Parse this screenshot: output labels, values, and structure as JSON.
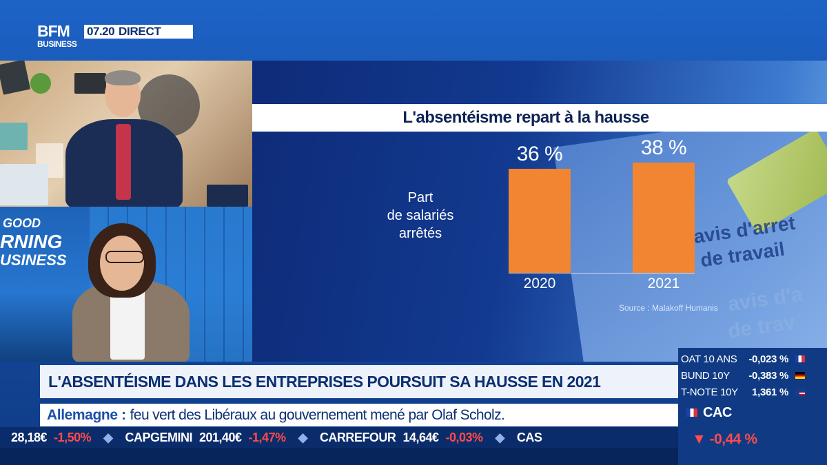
{
  "channel": {
    "logo_top": "BFM",
    "logo_bottom": "BUSINESS",
    "time": "07.20",
    "live": "DIRECT"
  },
  "show": {
    "l1": "GOOD",
    "l2": "RNING",
    "l3": "USINESS"
  },
  "infographic": {
    "title": "L'absentéisme repart à la hausse",
    "y_label": [
      "Part",
      "de salariés",
      "arrêtés"
    ],
    "source": "Source : Malakoff Humanis",
    "bg_text": [
      "avis d'arret",
      "de travail",
      "avis d'a",
      "de trav"
    ]
  },
  "chart_data": {
    "type": "bar",
    "title": "L'absentéisme repart à la hausse",
    "categories": [
      "2020",
      "2021"
    ],
    "values": [
      36,
      38
    ],
    "value_labels": [
      "36 %",
      "38 %"
    ],
    "ylabel": "Part de salariés arrêtés",
    "ylim": [
      0,
      40
    ],
    "color": "#f28531",
    "grid": false
  },
  "headline": "L'ABSENTÉISME DANS LES ENTREPRISES POURSUIT SA HAUSSE EN 2021",
  "flash": {
    "keyword": "Allemagne :",
    "text": "feu vert des Libéraux au gouvernement mené par Olaf Scholz."
  },
  "markets": [
    {
      "name": "OAT 10 ANS",
      "value": "0,023 %",
      "sign": "-",
      "flag": "france"
    },
    {
      "name": "BUND 10Y",
      "value": "0,383 %",
      "sign": "-",
      "flag": "germany"
    },
    {
      "name": "T-NOTE 10Y",
      "value": "1,361 %",
      "sign": "",
      "flag": "usa"
    }
  ],
  "index": {
    "name": "CAC",
    "change": "-0,44 %"
  },
  "ticker": [
    {
      "name": "",
      "price": "28,18€",
      "change": "-1,50%"
    },
    {
      "name": "CAPGEMINI",
      "price": "201,40€",
      "change": "-1,47%"
    },
    {
      "name": "CARREFOUR",
      "price": "14,64€",
      "change": "-0,03%"
    },
    {
      "name": "CAS",
      "price": "",
      "change": ""
    }
  ],
  "colors": {
    "accent": "#f28531",
    "navy": "#0c2f72",
    "down": "#ff4b4b"
  }
}
